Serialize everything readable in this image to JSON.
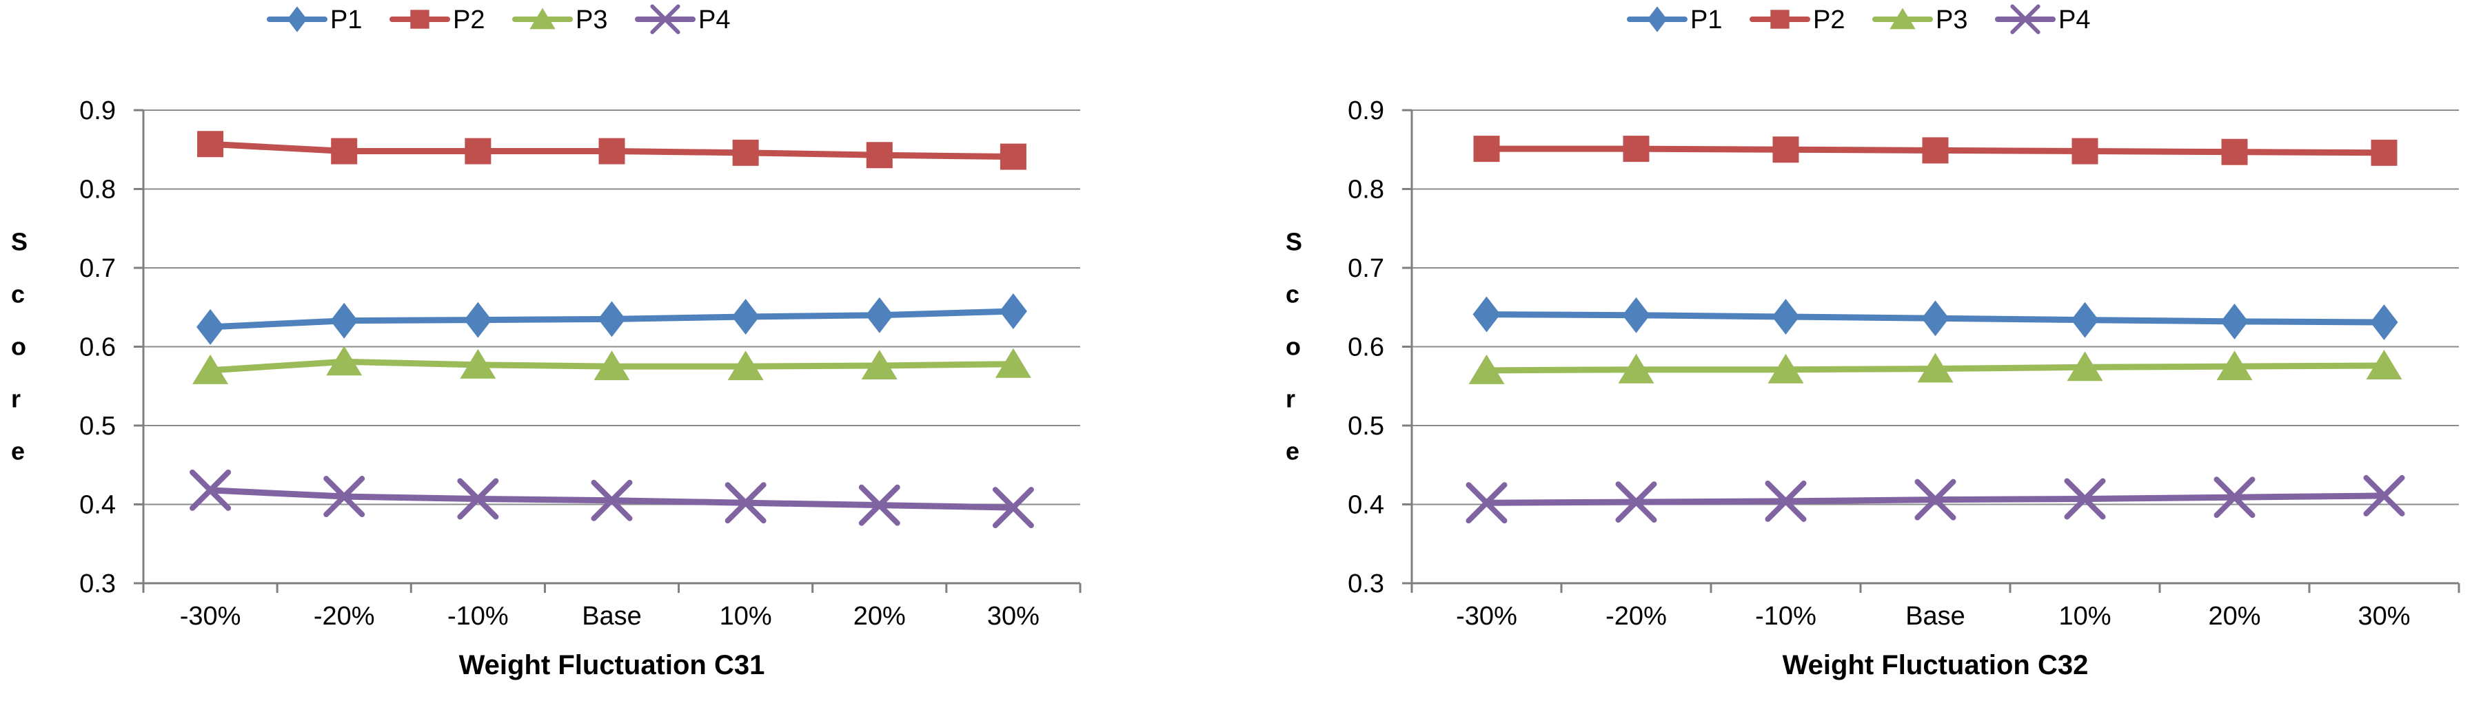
{
  "page": {
    "background": "#ffffff"
  },
  "chart_data": [
    {
      "type": "line",
      "name": "weight-fluctuation-c31",
      "xlabel": "Weight Fluctuation C31",
      "ylabel": "Score",
      "categories": [
        "-30%",
        "-20%",
        "-10%",
        "Base",
        "10%",
        "20%",
        "30%"
      ],
      "ylim": [
        0.3,
        0.9
      ],
      "yticks": [
        "0.9",
        "0.8",
        "0.7",
        "0.6",
        "0.5",
        "0.4",
        "0.3"
      ],
      "grid": true,
      "legend_position": "top-center",
      "series": [
        {
          "name": "P1",
          "color": "#4F81BD",
          "marker": "diamond",
          "values": [
            0.625,
            0.633,
            0.634,
            0.635,
            0.638,
            0.64,
            0.645
          ]
        },
        {
          "name": "P2",
          "color": "#C0504D",
          "marker": "square",
          "values": [
            0.857,
            0.848,
            0.848,
            0.848,
            0.846,
            0.843,
            0.841
          ]
        },
        {
          "name": "P3",
          "color": "#9BBB59",
          "marker": "triangle",
          "values": [
            0.57,
            0.581,
            0.577,
            0.575,
            0.575,
            0.576,
            0.578
          ]
        },
        {
          "name": "P4",
          "color": "#8064A2",
          "marker": "x",
          "values": [
            0.418,
            0.41,
            0.407,
            0.405,
            0.402,
            0.399,
            0.396
          ]
        }
      ]
    },
    {
      "type": "line",
      "name": "weight-fluctuation-c32",
      "xlabel": "Weight Fluctuation C32",
      "ylabel": "Score",
      "categories": [
        "-30%",
        "-20%",
        "-10%",
        "Base",
        "10%",
        "20%",
        "30%"
      ],
      "ylim": [
        0.3,
        0.9
      ],
      "yticks": [
        "0.9",
        "0.8",
        "0.7",
        "0.6",
        "0.5",
        "0.4",
        "0.3"
      ],
      "grid": true,
      "legend_position": "top-center",
      "series": [
        {
          "name": "P1",
          "color": "#4F81BD",
          "marker": "diamond",
          "values": [
            0.641,
            0.64,
            0.638,
            0.636,
            0.634,
            0.632,
            0.631
          ]
        },
        {
          "name": "P2",
          "color": "#C0504D",
          "marker": "square",
          "values": [
            0.851,
            0.851,
            0.85,
            0.849,
            0.848,
            0.847,
            0.846
          ]
        },
        {
          "name": "P3",
          "color": "#9BBB59",
          "marker": "triangle",
          "values": [
            0.57,
            0.571,
            0.571,
            0.572,
            0.574,
            0.575,
            0.576
          ]
        },
        {
          "name": "P4",
          "color": "#8064A2",
          "marker": "x",
          "values": [
            0.402,
            0.403,
            0.404,
            0.406,
            0.407,
            0.409,
            0.411
          ]
        }
      ]
    }
  ],
  "style": {
    "gridline_color": "#8C8C8C",
    "axis_color": "#7F7F7F",
    "text_color": "#000000"
  }
}
